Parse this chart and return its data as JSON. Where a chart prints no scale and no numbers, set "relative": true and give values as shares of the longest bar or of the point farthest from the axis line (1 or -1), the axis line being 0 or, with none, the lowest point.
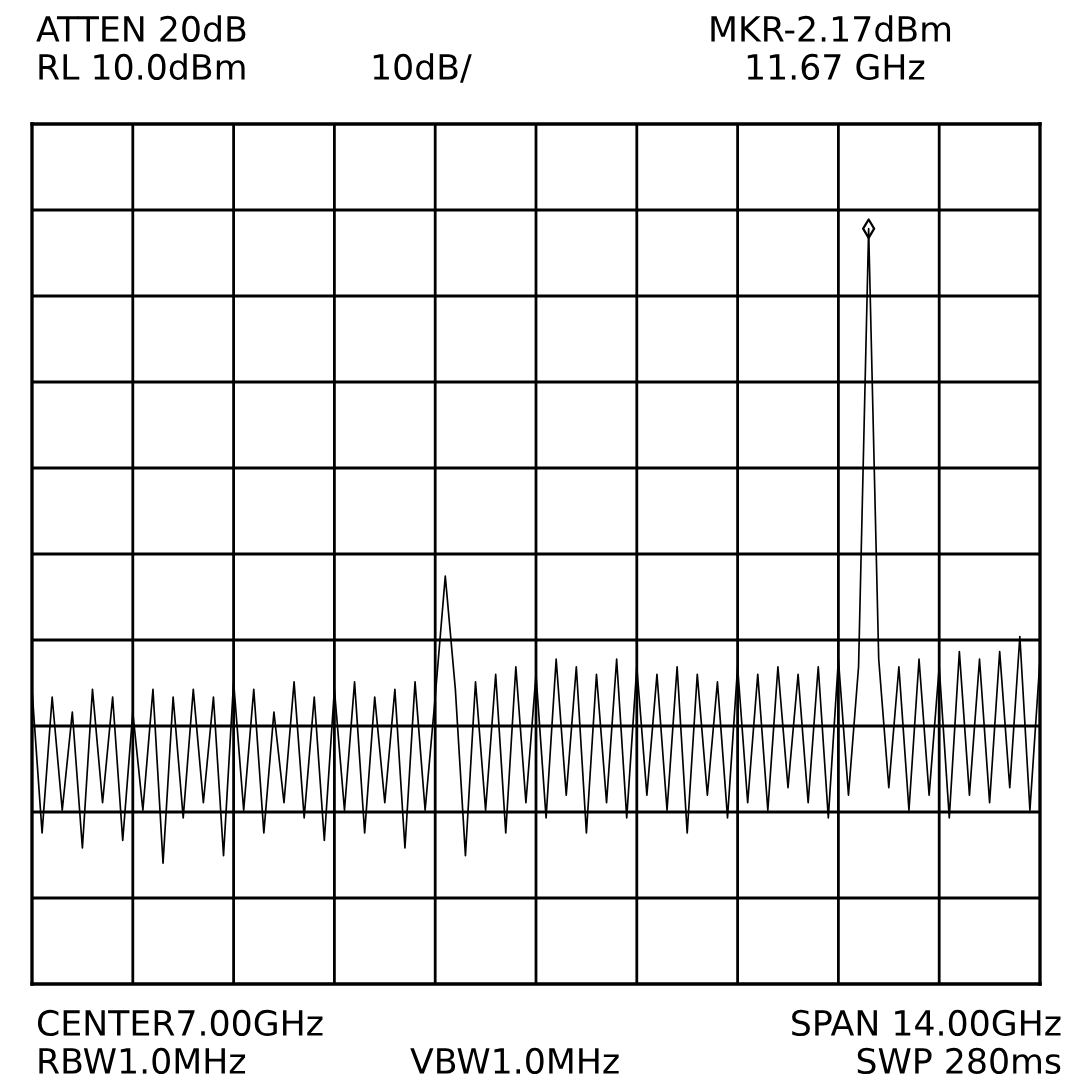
{
  "chart_data": {
    "type": "line",
    "relative": true,
    "annotations": [
      "ATTEN 20dB",
      "MKR-2.17dBm",
      "RL 10.0dBm",
      "10dB/",
      "11.67 GHz",
      "CENTER7.00GHz",
      "SPAN 14.00GHz",
      "RBW1.0MHz",
      "VBW1.0MHz",
      "SWP 280ms"
    ],
    "categories": [
      null,
      null,
      null,
      null,
      null,
      null,
      null,
      null,
      null,
      null,
      null,
      null,
      null,
      null,
      null,
      null,
      null,
      null,
      null,
      null,
      null,
      null,
      null,
      null,
      null,
      null,
      null,
      null,
      null,
      null,
      null,
      null,
      null,
      null,
      null,
      null,
      null,
      null,
      null,
      null,
      null,
      null,
      null,
      null,
      null,
      null,
      null,
      null,
      null,
      null,
      null,
      null,
      null,
      null,
      null,
      null,
      null,
      null,
      null,
      null,
      null,
      null,
      null,
      null,
      null,
      null,
      null,
      null,
      null,
      null,
      null,
      null,
      null,
      null,
      null,
      null,
      null,
      null,
      null,
      null,
      null,
      null,
      null,
      null,
      null,
      null,
      null,
      null,
      null,
      null,
      null,
      null,
      null,
      null,
      null,
      null,
      null,
      null,
      null,
      null,
      null
    ],
    "series": [
      {
        "color": "#000000",
        "values": [
          0.39,
          0.2,
          0.38,
          0.23,
          0.36,
          0.18,
          0.39,
          0.24,
          0.38,
          0.19,
          0.36,
          0.23,
          0.39,
          0.16,
          0.38,
          0.22,
          0.39,
          0.24,
          0.38,
          0.17,
          0.4,
          0.23,
          0.39,
          0.2,
          0.36,
          0.24,
          0.4,
          0.22,
          0.38,
          0.19,
          0.39,
          0.23,
          0.4,
          0.2,
          0.38,
          0.24,
          0.39,
          0.18,
          0.4,
          0.23,
          0.38,
          0.54,
          0.39,
          0.17,
          0.4,
          0.23,
          0.41,
          0.2,
          0.42,
          0.24,
          0.41,
          0.22,
          0.43,
          0.25,
          0.42,
          0.2,
          0.41,
          0.24,
          0.43,
          0.22,
          0.42,
          0.25,
          0.41,
          0.23,
          0.42,
          0.2,
          0.41,
          0.25,
          0.4,
          0.22,
          0.42,
          0.24,
          0.41,
          0.23,
          0.42,
          0.26,
          0.41,
          0.24,
          0.42,
          0.22,
          0.43,
          0.25,
          0.42,
          1,
          0.43,
          0.26,
          0.42,
          0.23,
          0.43,
          0.25,
          0.42,
          0.22,
          0.44,
          0.25,
          0.43,
          0.24,
          0.44,
          0.26,
          0.46,
          0.23,
          0.43
        ]
      }
    ],
    "grid": true
  }
}
